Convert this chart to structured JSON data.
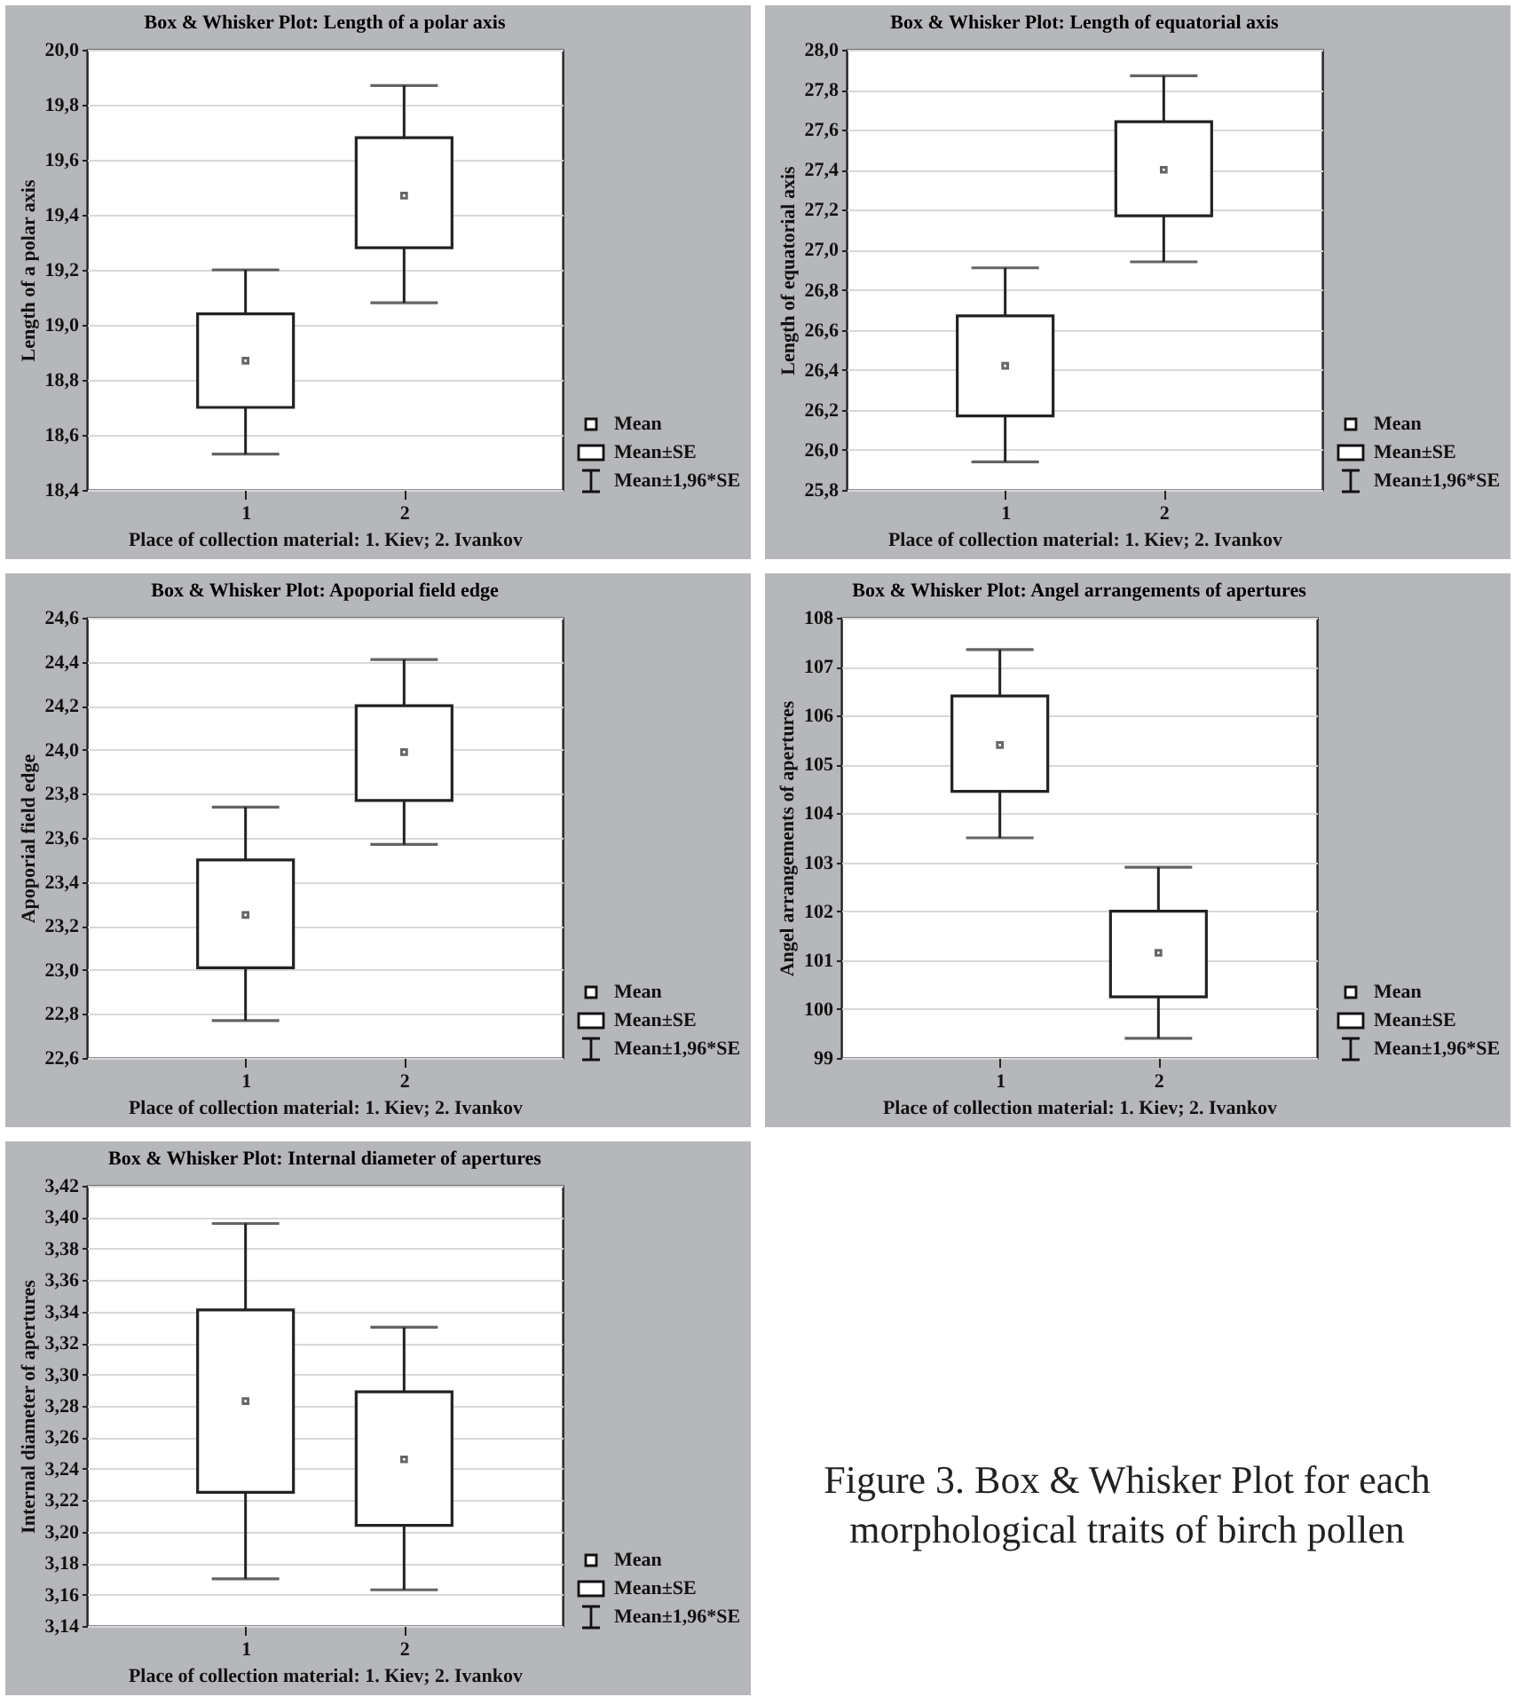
{
  "chart_data": [
    {
      "type": "box",
      "title": "Box & Whisker Plot: Length of a polar axis",
      "xlabel": "Place of collection material: 1. Kiev; 2. Ivankov",
      "ylabel": "Length of a polar axis",
      "categories": [
        "1",
        "2"
      ],
      "ylim": [
        18.4,
        20.0
      ],
      "yticks": [
        {
          "value": 18.4,
          "label": "18,4"
        },
        {
          "value": 18.6,
          "label": "18,6"
        },
        {
          "value": 18.8,
          "label": "18,8"
        },
        {
          "value": 19.0,
          "label": "19,0"
        },
        {
          "value": 19.2,
          "label": "19,2"
        },
        {
          "value": 19.4,
          "label": "19,4"
        },
        {
          "value": 19.6,
          "label": "19,6"
        },
        {
          "value": 19.8,
          "label": "19,8"
        },
        {
          "value": 20.0,
          "label": "20,0"
        }
      ],
      "grid": "y",
      "marker": "square",
      "boxes": [
        {
          "low": 18.53,
          "q1": 18.7,
          "median": 18.87,
          "q3": 19.04,
          "high": 19.2
        },
        {
          "low": 19.08,
          "q1": 19.28,
          "median": 19.47,
          "q3": 19.68,
          "high": 19.87
        }
      ],
      "annotations": [
        "Mean",
        "Mean±SE",
        "Mean±1,96*SE"
      ]
    },
    {
      "type": "box",
      "title": "Box & Whisker Plot: Length of equatorial axis",
      "xlabel": "Place of collection material: 1. Kiev; 2. Ivankov",
      "ylabel": "Length of equatorial axis",
      "categories": [
        "1",
        "2"
      ],
      "ylim": [
        25.8,
        28.0
      ],
      "yticks": [
        {
          "value": 25.8,
          "label": "25,8"
        },
        {
          "value": 26.0,
          "label": "26,0"
        },
        {
          "value": 26.2,
          "label": "26,2"
        },
        {
          "value": 26.4,
          "label": "26,4"
        },
        {
          "value": 26.6,
          "label": "26,6"
        },
        {
          "value": 26.8,
          "label": "26,8"
        },
        {
          "value": 27.0,
          "label": "27,0"
        },
        {
          "value": 27.2,
          "label": "27,2"
        },
        {
          "value": 27.4,
          "label": "27,4"
        },
        {
          "value": 27.6,
          "label": "27,6"
        },
        {
          "value": 27.8,
          "label": "27,8"
        },
        {
          "value": 28.0,
          "label": "28,0"
        }
      ],
      "grid": "y",
      "marker": "square",
      "boxes": [
        {
          "low": 25.94,
          "q1": 26.17,
          "median": 26.42,
          "q3": 26.67,
          "high": 26.91
        },
        {
          "low": 26.94,
          "q1": 27.17,
          "median": 27.4,
          "q3": 27.64,
          "high": 27.87
        }
      ],
      "annotations": [
        "Mean",
        "Mean±SE",
        "Mean±1,96*SE"
      ]
    },
    {
      "type": "box",
      "title": "Box & Whisker Plot: Apoporial field edge",
      "xlabel": "Place of collection material: 1. Kiev; 2. Ivankov",
      "ylabel": "Apoporial field edge",
      "categories": [
        "1",
        "2"
      ],
      "ylim": [
        22.6,
        24.6
      ],
      "yticks": [
        {
          "value": 22.6,
          "label": "22,6"
        },
        {
          "value": 22.8,
          "label": "22,8"
        },
        {
          "value": 23.0,
          "label": "23,0"
        },
        {
          "value": 23.2,
          "label": "23,2"
        },
        {
          "value": 23.4,
          "label": "23,4"
        },
        {
          "value": 23.6,
          "label": "23,6"
        },
        {
          "value": 23.8,
          "label": "23,8"
        },
        {
          "value": 24.0,
          "label": "24,0"
        },
        {
          "value": 24.2,
          "label": "24,2"
        },
        {
          "value": 24.4,
          "label": "24,4"
        },
        {
          "value": 24.6,
          "label": "24,6"
        }
      ],
      "grid": "y",
      "marker": "square",
      "boxes": [
        {
          "low": 22.77,
          "q1": 23.01,
          "median": 23.25,
          "q3": 23.5,
          "high": 23.74
        },
        {
          "low": 23.57,
          "q1": 23.77,
          "median": 23.99,
          "q3": 24.2,
          "high": 24.41
        }
      ],
      "annotations": [
        "Mean",
        "Mean±SE",
        "Mean±1,96*SE"
      ]
    },
    {
      "type": "box",
      "title": "Box & Whisker Plot: Angel arrangements of apertures",
      "xlabel": "Place of collection material: 1. Kiev; 2. Ivankov",
      "ylabel": "Angel arrangements of apertures",
      "categories": [
        "1",
        "2"
      ],
      "ylim": [
        99,
        108
      ],
      "yticks": [
        99,
        100,
        101,
        102,
        103,
        104,
        105,
        106,
        107,
        108
      ],
      "grid": "y",
      "marker": "square",
      "boxes": [
        {
          "low": 103.5,
          "q1": 104.45,
          "median": 105.4,
          "q3": 106.4,
          "high": 107.35
        },
        {
          "low": 99.4,
          "q1": 100.25,
          "median": 101.15,
          "q3": 102.0,
          "high": 102.9
        }
      ],
      "annotations": [
        "Mean",
        "Mean±SE",
        "Mean±1,96*SE"
      ]
    },
    {
      "type": "box",
      "title": "Box & Whisker Plot: Internal diameter of apertures",
      "xlabel": "Place of collection material: 1. Kiev; 2. Ivankov",
      "ylabel": "Internal diameter of apertures",
      "categories": [
        "1",
        "2"
      ],
      "ylim": [
        3.14,
        3.42
      ],
      "yticks": [
        {
          "value": 3.14,
          "label": "3,14"
        },
        {
          "value": 3.16,
          "label": "3,16"
        },
        {
          "value": 3.18,
          "label": "3,18"
        },
        {
          "value": 3.2,
          "label": "3,20"
        },
        {
          "value": 3.22,
          "label": "3,22"
        },
        {
          "value": 3.24,
          "label": "3,24"
        },
        {
          "value": 3.26,
          "label": "3,26"
        },
        {
          "value": 3.28,
          "label": "3,28"
        },
        {
          "value": 3.3,
          "label": "3,30"
        },
        {
          "value": 3.32,
          "label": "3,32"
        },
        {
          "value": 3.34,
          "label": "3,34"
        },
        {
          "value": 3.36,
          "label": "3,36"
        },
        {
          "value": 3.38,
          "label": "3,38"
        },
        {
          "value": 3.4,
          "label": "3,40"
        },
        {
          "value": 3.42,
          "label": "3,42"
        }
      ],
      "grid": "y",
      "marker": "square",
      "boxes": [
        {
          "low": 3.17,
          "q1": 3.225,
          "median": 3.283,
          "q3": 3.341,
          "high": 3.396
        },
        {
          "low": 3.163,
          "q1": 3.204,
          "median": 3.246,
          "q3": 3.289,
          "high": 3.33
        }
      ],
      "annotations": [
        "Mean",
        "Mean±SE",
        "Mean±1,96*SE"
      ]
    },
    {
      "type": "other",
      "annotations": [
        "Figure 3. Box & Whisker Plot for each morphological traits of birch pollen"
      ]
    }
  ]
}
